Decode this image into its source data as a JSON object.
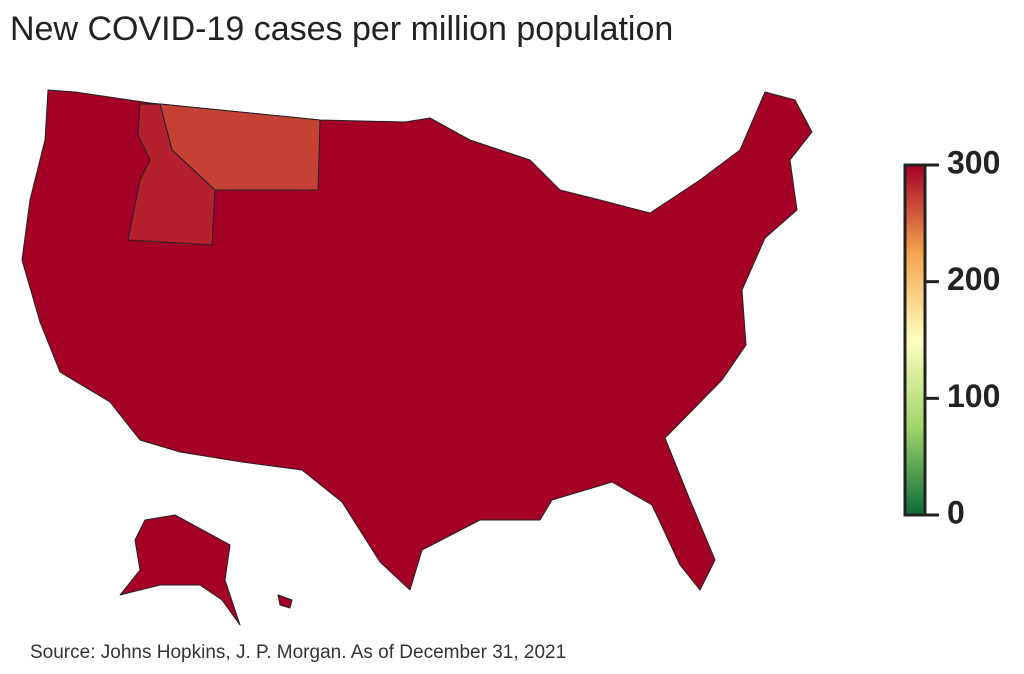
{
  "chart_data": {
    "type": "choropleth",
    "title": "New COVID-19 cases per million population",
    "source": "Source: Johns Hopkins, J. P. Morgan. As of December 31, 2021",
    "values": [
      300,
      270,
      285
    ],
    "colorscale": [
      "#0b6b3a",
      "#9fd46a",
      "#ffffbf",
      "#f5a24e",
      "#a50026"
    ],
    "clim": [
      0,
      300
    ],
    "cticks": [
      0,
      100,
      200,
      300
    ]
  }
}
